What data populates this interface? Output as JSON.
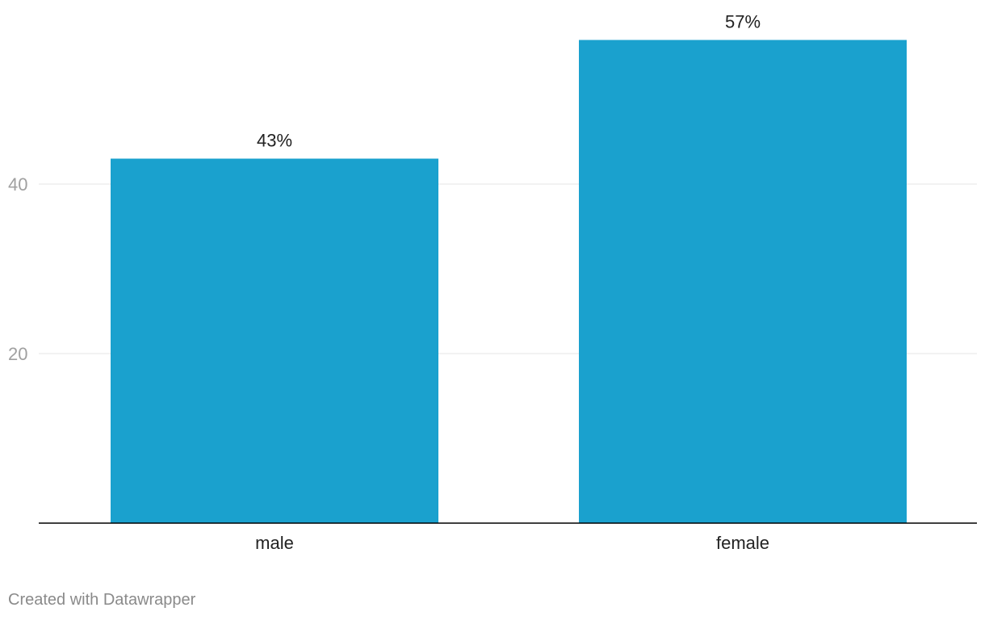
{
  "chart_data": {
    "type": "bar",
    "categories": [
      "male",
      "female"
    ],
    "values": [
      43,
      57
    ],
    "value_labels": [
      "43%",
      "57%"
    ],
    "title": "",
    "xlabel": "",
    "ylabel": "",
    "ylim": [
      0,
      60
    ],
    "yticks": [
      20,
      40
    ],
    "grid": true,
    "legend": "none",
    "bar_color": "#1aa1ce"
  },
  "footer": {
    "credit": "Created with Datawrapper"
  }
}
